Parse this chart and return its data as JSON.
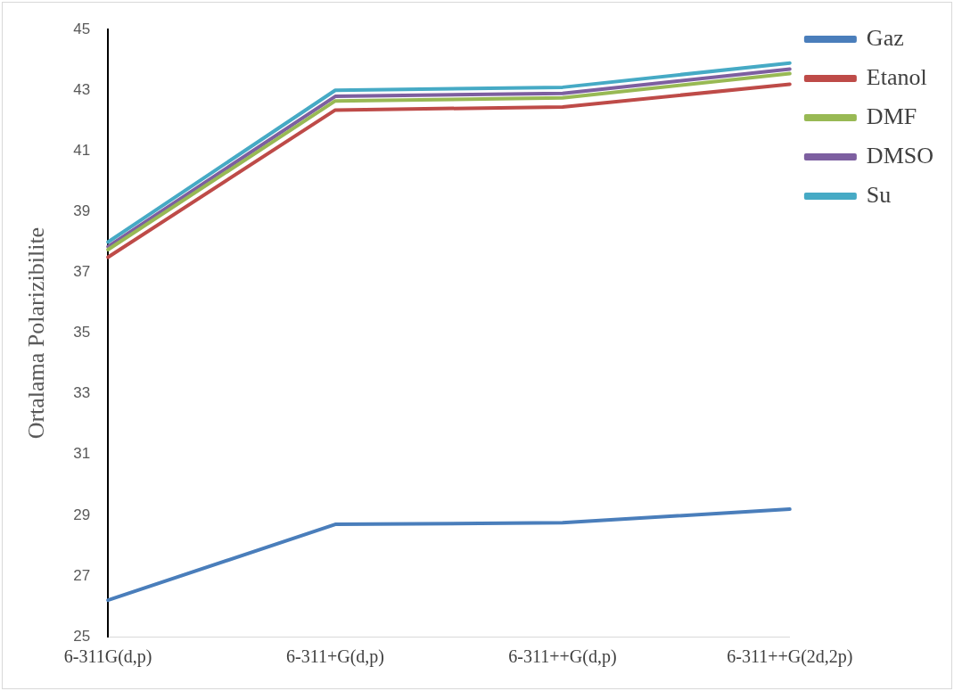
{
  "chart_data": {
    "type": "line",
    "ylabel": "Ortalama Polarizibilite",
    "categories": [
      "6-311G(d,p)",
      "6-311+G(d,p)",
      "6-311++G(d,p)",
      "6-311++G(2d,2p)"
    ],
    "series": [
      {
        "name": "Gaz",
        "color": "#4a7ebb",
        "values": [
          26.2,
          28.7,
          28.75,
          29.2
        ]
      },
      {
        "name": "Etanol",
        "color": "#be4b48",
        "values": [
          37.5,
          42.35,
          42.45,
          43.2
        ]
      },
      {
        "name": "DMF",
        "color": "#98b954",
        "values": [
          37.75,
          42.65,
          42.75,
          43.55
        ]
      },
      {
        "name": "DMSO",
        "color": "#7d5fa0",
        "values": [
          37.85,
          42.8,
          42.9,
          43.7
        ]
      },
      {
        "name": "Su",
        "color": "#46aac5",
        "values": [
          38.0,
          43.0,
          43.1,
          43.9
        ]
      }
    ],
    "ylim": [
      25,
      45
    ],
    "yticks": [
      25,
      27,
      29,
      31,
      33,
      35,
      37,
      39,
      41,
      43,
      45
    ],
    "grid": false,
    "legend": "right",
    "marker": "none",
    "line_style": "solid"
  }
}
